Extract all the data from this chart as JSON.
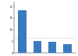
{
  "categories": [
    "1",
    "2",
    "3",
    "4"
  ],
  "values": [
    18500,
    5200,
    4800,
    3800
  ],
  "bar_color": "#3a7abf",
  "ylim": [
    0,
    22000
  ],
  "yticks": [
    0,
    5000,
    10000,
    15000,
    20000
  ],
  "dashed_line_y": 6500,
  "background_color": "#ffffff",
  "bar_width": 0.55
}
